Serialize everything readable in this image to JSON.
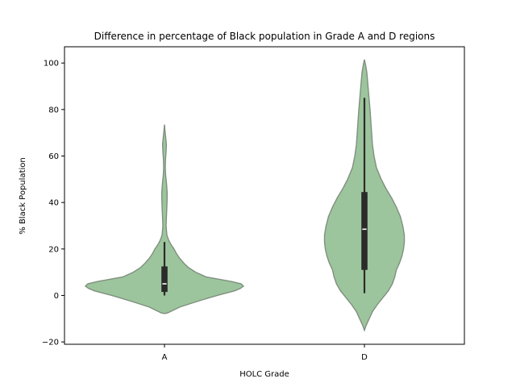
{
  "chart_data": {
    "type": "violin",
    "title": "Difference in percentage of Black population in Grade A and D regions",
    "xlabel": "HOLC Grade",
    "ylabel": "% Black Population",
    "categories": [
      "A",
      "D"
    ],
    "ylim": [
      -21,
      107
    ],
    "yticks": [
      -20,
      0,
      20,
      40,
      60,
      80,
      100
    ],
    "ytick_labels": [
      "−20",
      "0",
      "20",
      "40",
      "60",
      "80",
      "100"
    ],
    "grid": false,
    "colors": {
      "violin_fill": "#9dc59d",
      "violin_edge": "#7f8f7f",
      "box": "#2b2b2b",
      "median": "#ffffff"
    },
    "violins": [
      {
        "category": "A",
        "box": {
          "whisker_low": 0,
          "q1": 1.5,
          "median": 5,
          "q3": 12.5,
          "whisker_high": 23
        },
        "density_profile": [
          [
            -7.8,
            0.0
          ],
          [
            -7.5,
            0.04
          ],
          [
            -6.5,
            0.1
          ],
          [
            -5,
            0.19
          ],
          [
            -3,
            0.37
          ],
          [
            -1,
            0.56
          ],
          [
            0,
            0.66
          ],
          [
            1,
            0.77
          ],
          [
            2,
            0.88
          ],
          [
            3,
            0.95
          ],
          [
            4,
            0.99
          ],
          [
            5,
            0.96
          ],
          [
            6,
            0.84
          ],
          [
            7,
            0.68
          ],
          [
            8,
            0.52
          ],
          [
            10,
            0.39
          ],
          [
            12,
            0.3
          ],
          [
            14,
            0.24
          ],
          [
            16,
            0.19
          ],
          [
            18,
            0.15
          ],
          [
            20,
            0.12
          ],
          [
            22,
            0.08
          ],
          [
            24,
            0.05
          ],
          [
            26,
            0.03
          ],
          [
            28,
            0.025
          ],
          [
            30,
            0.02
          ],
          [
            32,
            0.022
          ],
          [
            35,
            0.026
          ],
          [
            40,
            0.032
          ],
          [
            44,
            0.034
          ],
          [
            48,
            0.026
          ],
          [
            52,
            0.014
          ],
          [
            55,
            0.01
          ],
          [
            58,
            0.012
          ],
          [
            62,
            0.02
          ],
          [
            65,
            0.024
          ],
          [
            68,
            0.015
          ],
          [
            71,
            0.006
          ],
          [
            73.5,
            0.0
          ]
        ]
      },
      {
        "category": "D",
        "box": {
          "whisker_low": 1,
          "q1": 11,
          "median": 28.5,
          "q3": 44.5,
          "whisker_high": 85
        },
        "density_profile": [
          [
            -15,
            0.0
          ],
          [
            -13,
            0.02
          ],
          [
            -10,
            0.06
          ],
          [
            -7,
            0.1
          ],
          [
            -4,
            0.16
          ],
          [
            -1,
            0.23
          ],
          [
            2,
            0.3
          ],
          [
            5,
            0.35
          ],
          [
            8,
            0.38
          ],
          [
            11,
            0.4
          ],
          [
            14,
            0.44
          ],
          [
            17,
            0.47
          ],
          [
            20,
            0.49
          ],
          [
            23,
            0.5
          ],
          [
            26,
            0.5
          ],
          [
            30,
            0.48
          ],
          [
            34,
            0.45
          ],
          [
            38,
            0.4
          ],
          [
            42,
            0.34
          ],
          [
            46,
            0.27
          ],
          [
            50,
            0.21
          ],
          [
            55,
            0.15
          ],
          [
            60,
            0.12
          ],
          [
            65,
            0.1
          ],
          [
            70,
            0.09
          ],
          [
            75,
            0.08
          ],
          [
            80,
            0.07
          ],
          [
            84,
            0.06
          ],
          [
            88,
            0.05
          ],
          [
            92,
            0.04
          ],
          [
            96,
            0.03
          ],
          [
            99,
            0.015
          ],
          [
            101.5,
            0.0
          ]
        ]
      }
    ]
  }
}
